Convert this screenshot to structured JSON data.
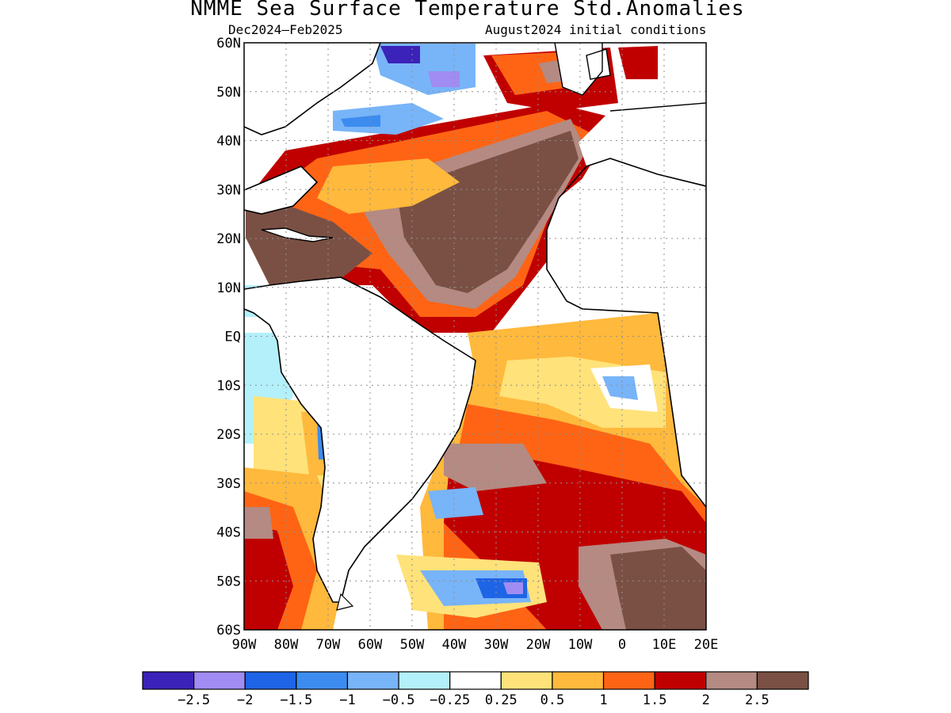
{
  "title": "NMME Sea Surface Temperature Std.Anomalies",
  "subtitle_left": "Dec2024–Feb2025",
  "subtitle_right": "August2024 initial conditions",
  "map": {
    "type": "filled-contour anomaly map",
    "region": "Atlantic Ocean",
    "lon_labels": [
      "90W",
      "80W",
      "70W",
      "60W",
      "50W",
      "40W",
      "30W",
      "20W",
      "10W",
      "0",
      "10E",
      "20E"
    ],
    "lat_labels": [
      "60N",
      "50N",
      "40N",
      "30N",
      "20N",
      "10N",
      "EQ",
      "10S",
      "20S",
      "30S",
      "40S",
      "50S",
      "60S"
    ],
    "lon_range": [
      -90,
      20
    ],
    "lat_range": [
      -60,
      60
    ],
    "grid": "dotted"
  },
  "colorbar": {
    "bins": [
      {
        "color": "#3b22b8"
      },
      {
        "color": "#a08cf2"
      },
      {
        "color": "#1e64e6"
      },
      {
        "color": "#3c8cf0"
      },
      {
        "color": "#78b4f8"
      },
      {
        "color": "#b4f0fa"
      },
      {
        "color": "#ffffff"
      },
      {
        "color": "#ffe27a"
      },
      {
        "color": "#ffb93c"
      },
      {
        "color": "#ff6414"
      },
      {
        "color": "#c00000"
      },
      {
        "color": "#b48a82"
      },
      {
        "color": "#7a5044"
      }
    ],
    "labels": [
      "−2.5",
      "−2",
      "−1.5",
      "−1",
      "−0.5",
      "−0.25",
      "0.25",
      "0.5",
      "1",
      "1.5",
      "2",
      "2.5"
    ]
  }
}
